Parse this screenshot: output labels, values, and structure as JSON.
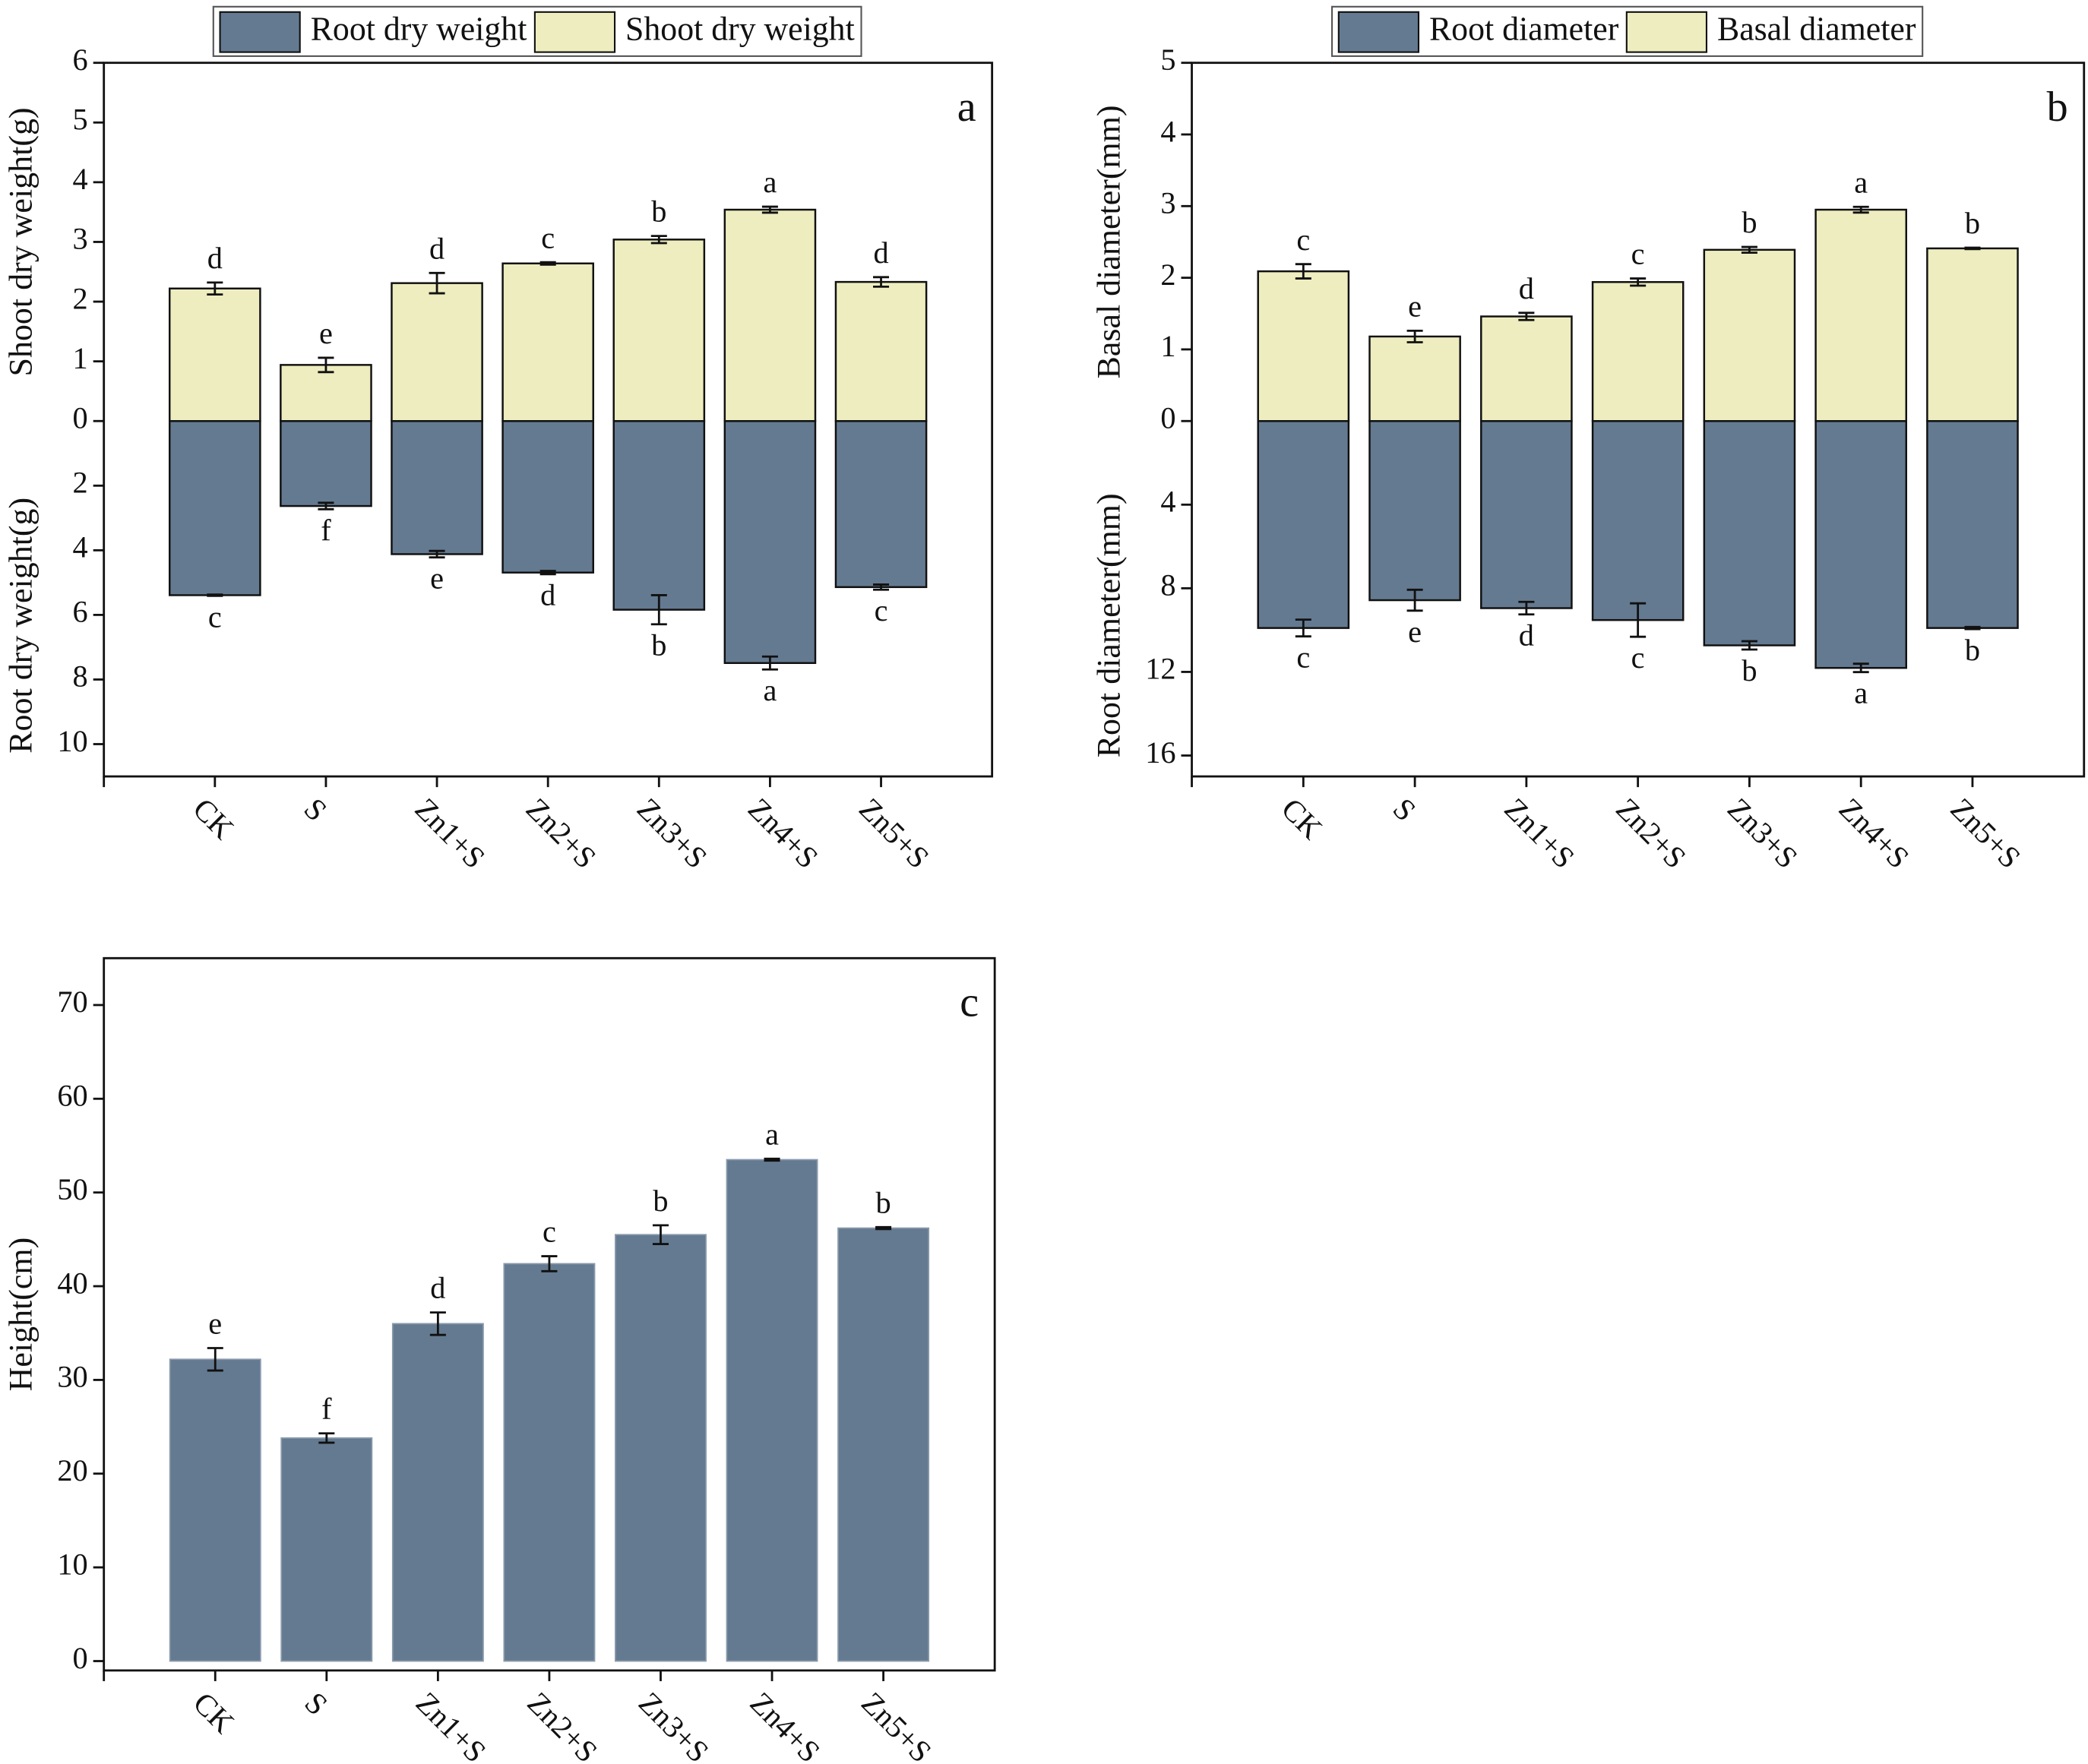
{
  "chart_data": [
    {
      "type": "bar",
      "panel_label": "a",
      "categories": [
        "CK",
        "S",
        "Zn1+S",
        "Zn2+S",
        "Zn3+S",
        "Zn4+S",
        "Zn5+S"
      ],
      "ylabel": "Shoot dry weight(g)",
      "y2label": "Root dry weight(g)",
      "ylim": [
        0,
        6
      ],
      "yticks": [
        0,
        1,
        2,
        3,
        4,
        5,
        6
      ],
      "y2lim": [
        0,
        11
      ],
      "y2ticks": [
        2,
        4,
        6,
        8,
        10
      ],
      "y2_inverted": true,
      "series": [
        {
          "name": "Root dry weight",
          "color": "#647a91",
          "axis": "y2",
          "values": [
            5.39,
            2.63,
            4.12,
            4.69,
            5.84,
            7.49,
            5.14
          ],
          "errors": [
            0.02,
            0.1,
            0.1,
            0.05,
            0.45,
            0.2,
            0.08
          ],
          "labels": [
            "c",
            "f",
            "e",
            "d",
            "b",
            "a",
            "c"
          ]
        },
        {
          "name": "Shoot dry weight",
          "color": "#ededbf",
          "values": [
            2.22,
            0.94,
            2.31,
            2.64,
            3.04,
            3.54,
            2.33
          ],
          "errors": [
            0.1,
            0.12,
            0.17,
            0.02,
            0.06,
            0.05,
            0.08
          ],
          "labels": [
            "d",
            "e",
            "d",
            "c",
            "b",
            "a",
            "d"
          ]
        }
      ]
    },
    {
      "type": "bar",
      "panel_label": "b",
      "categories": [
        "CK",
        "S",
        "Zn1+S",
        "Zn2+S",
        "Zn3+S",
        "Zn4+S",
        "Zn5+S"
      ],
      "ylabel": "Basal diameter(mm)",
      "y2label": "Root diameter(mm)",
      "ylim": [
        0,
        5
      ],
      "yticks": [
        0,
        1,
        2,
        3,
        4,
        5
      ],
      "y2lim": [
        0,
        17
      ],
      "y2ticks": [
        4,
        8,
        12,
        16
      ],
      "y2_inverted": true,
      "series": [
        {
          "name": "Root diameter",
          "color": "#647a91",
          "axis": "y2",
          "values": [
            9.9,
            8.57,
            8.95,
            9.52,
            10.73,
            11.81,
            9.9
          ],
          "errors": [
            0.4,
            0.5,
            0.3,
            0.8,
            0.2,
            0.2,
            0.05
          ],
          "labels": [
            "c",
            "e",
            "d",
            "c",
            "b",
            "a",
            "b"
          ]
        },
        {
          "name": "Basal diameter",
          "color": "#ededbf",
          "values": [
            2.09,
            1.18,
            1.46,
            1.94,
            2.39,
            2.95,
            2.41
          ],
          "errors": [
            0.1,
            0.08,
            0.05,
            0.05,
            0.04,
            0.04,
            0.01
          ],
          "labels": [
            "c",
            "e",
            "d",
            "c",
            "b",
            "a",
            "b"
          ]
        }
      ]
    },
    {
      "type": "bar",
      "panel_label": "c",
      "categories": [
        "CK",
        "S",
        "Zn1+S",
        "Zn2+S",
        "Zn3+S",
        "Zn4+S",
        "Zn5+S"
      ],
      "ylabel": "Height(cm)",
      "ylim": [
        -1,
        75
      ],
      "yticks": [
        0,
        10,
        20,
        30,
        40,
        50,
        60,
        70
      ],
      "color": "#647a91",
      "values": [
        32.2,
        23.8,
        36.0,
        42.4,
        45.5,
        53.5,
        46.2
      ],
      "errors": [
        1.2,
        0.5,
        1.2,
        0.8,
        1.0,
        0.1,
        0.1
      ],
      "labels": [
        "e",
        "f",
        "d",
        "c",
        "b",
        "a",
        "b"
      ]
    }
  ]
}
